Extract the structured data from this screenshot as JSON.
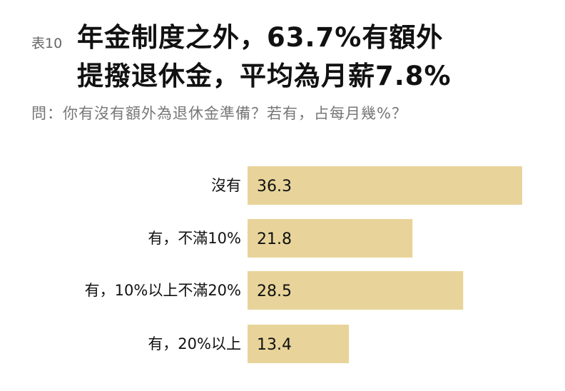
{
  "table_tag": "表10",
  "title_lines": [
    "年金制度之外，63.7%有額外",
    "提撥退休金，平均為月薪7.8%"
  ],
  "question": "問：你有沒有額外為退休金準備？若有，占每月幾%？",
  "chart_data": {
    "type": "bar",
    "orientation": "horizontal",
    "categories": [
      "沒有",
      "有，不滿10%",
      "有，10%以上不滿20%",
      "有，20%以上"
    ],
    "values": [
      36.3,
      21.8,
      28.5,
      13.4
    ],
    "value_labels": [
      "36.3",
      "21.8",
      "28.5",
      "13.4"
    ],
    "xlim": [
      0,
      36.3
    ],
    "grid": false,
    "bar_color": "#e8d49a"
  }
}
